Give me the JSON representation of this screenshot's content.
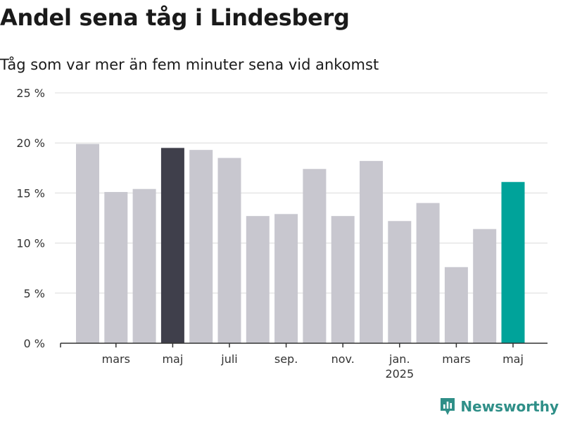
{
  "title": "Andel sena tåg i Lindesberg",
  "subtitle": "Tåg som var mer än fem minuter sena vid ankomst",
  "brand": {
    "name": "Newsworthy",
    "icon": "newsworthy-logo-icon",
    "color": "#2f8f88"
  },
  "chart_data": {
    "type": "bar",
    "title": "Andel sena tåg i Lindesberg",
    "subtitle": "Tåg som var mer än fem minuter sena vid ankomst",
    "ylabel": "",
    "xlabel": "",
    "ylim": [
      0,
      25
    ],
    "yticks": [
      0,
      5,
      10,
      15,
      20,
      25
    ],
    "ytick_suffix": " %",
    "grid": true,
    "categories": [
      "2024-02",
      "2024-03",
      "2024-04",
      "2024-05",
      "2024-06",
      "2024-07",
      "2024-08",
      "2024-09",
      "2024-10",
      "2024-11",
      "2024-12",
      "2025-01",
      "2025-02",
      "2025-03",
      "2025-04",
      "2025-05"
    ],
    "values": [
      19.9,
      15.1,
      15.4,
      19.5,
      19.3,
      18.5,
      12.7,
      12.9,
      17.4,
      12.7,
      18.2,
      12.2,
      14.0,
      7.6,
      11.4,
      16.1
    ],
    "xtick_labels": [
      {
        "category": "2024-03",
        "label": "mars"
      },
      {
        "category": "2024-05",
        "label": "maj"
      },
      {
        "category": "2024-07",
        "label": "juli"
      },
      {
        "category": "2024-09",
        "label": "sep."
      },
      {
        "category": "2024-11",
        "label": "nov."
      },
      {
        "category": "2025-01",
        "label": "jan.",
        "sublabel": "2025"
      },
      {
        "category": "2025-03",
        "label": "mars"
      },
      {
        "category": "2025-05",
        "label": "maj"
      }
    ],
    "colors": {
      "default": "#c8c7cf",
      "highlight_dark": "#3f3f4b",
      "highlight_accent": "#00a39a",
      "grid": "#dcdcdc",
      "axis": "#333333"
    },
    "highlights": {
      "2024-05": "highlight_dark",
      "2025-05": "highlight_accent"
    }
  }
}
